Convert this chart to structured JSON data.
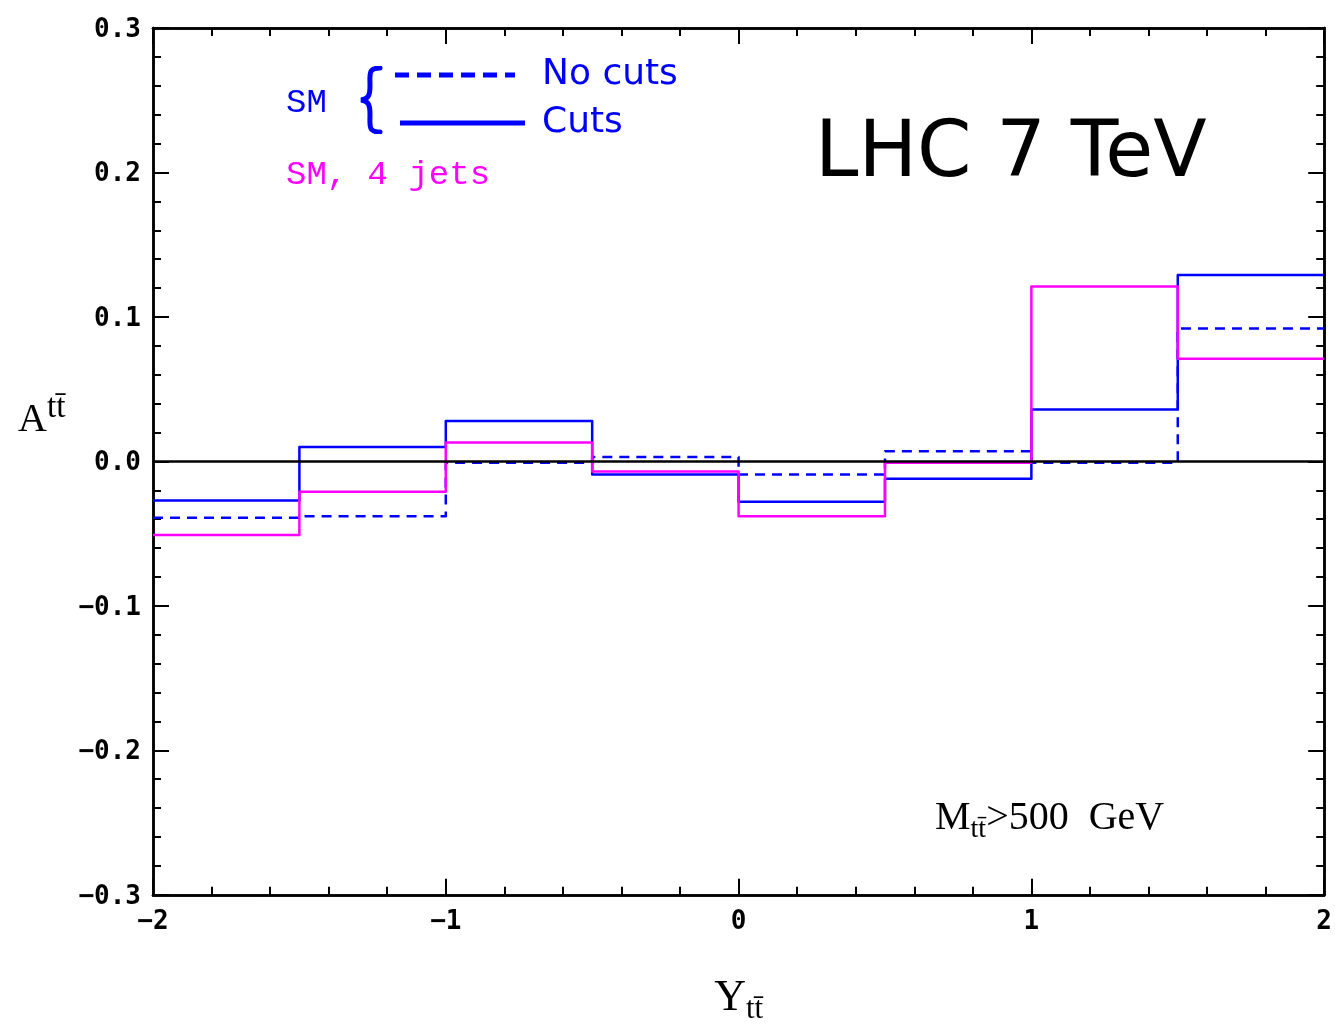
{
  "chart_data": {
    "type": "histogram",
    "xlabel": "Y$_{tt̄}$",
    "ylabel": "A$^{tt̄}$",
    "bins": [
      -2,
      -1.5,
      -1,
      -0.5,
      0,
      0.5,
      1,
      1.5,
      2
    ],
    "series": [
      {
        "name": "No cuts",
        "color": "#0000ff",
        "line_style": "dashed",
        "values": [
          -0.039,
          -0.038,
          -0.001,
          0.003,
          -0.009,
          0.007,
          -0.001,
          0.092
        ]
      },
      {
        "name": "Cuts",
        "color": "#0000ff",
        "line_style": "solid",
        "values": [
          -0.027,
          0.01,
          0.028,
          -0.009,
          -0.028,
          -0.012,
          0.036,
          0.129
        ]
      },
      {
        "name": "SM, 4 jets",
        "color": "#ff00ff",
        "line_style": "solid",
        "values": [
          -0.051,
          -0.021,
          0.013,
          -0.007,
          -0.038,
          -0.001,
          0.121,
          0.071
        ]
      }
    ],
    "xlim": [
      -2,
      2
    ],
    "xticks": [
      {
        "value": -2,
        "label": "−2"
      },
      {
        "value": -1.8,
        "label": null
      },
      {
        "value": -1.6,
        "label": null
      },
      {
        "value": -1.4,
        "label": null
      },
      {
        "value": -1.2,
        "label": null
      },
      {
        "value": -1,
        "label": "−1"
      },
      {
        "value": -0.8,
        "label": null
      },
      {
        "value": -0.6,
        "label": null
      },
      {
        "value": -0.4,
        "label": null
      },
      {
        "value": -0.2,
        "label": null
      },
      0,
      {
        "value": 0.2,
        "label": null
      },
      {
        "value": 0.4,
        "label": null
      },
      {
        "value": 0.6,
        "label": null
      },
      {
        "value": 0.8,
        "label": null
      },
      1,
      {
        "value": 1.2,
        "label": null
      },
      {
        "value": 1.4,
        "label": null
      },
      {
        "value": 1.6,
        "label": null
      },
      {
        "value": 1.8,
        "label": null
      },
      2
    ],
    "ylim": [
      -0.3,
      0.3
    ],
    "yticks": [
      {
        "value": -0.3,
        "label": "−0.3"
      },
      {
        "value": -0.28,
        "label": null
      },
      {
        "value": -0.26,
        "label": null
      },
      {
        "value": -0.24,
        "label": null
      },
      {
        "value": -0.22,
        "label": null
      },
      {
        "value": -0.2,
        "label": "−0.2"
      },
      {
        "value": -0.18,
        "label": null
      },
      {
        "value": -0.16,
        "label": null
      },
      {
        "value": -0.14,
        "label": null
      },
      {
        "value": -0.12,
        "label": null
      },
      {
        "value": -0.1,
        "label": "−0.1"
      },
      {
        "value": -0.08,
        "label": null
      },
      {
        "value": -0.06,
        "label": null
      },
      {
        "value": -0.04,
        "label": null
      },
      {
        "value": -0.02,
        "label": null
      },
      {
        "value": 0,
        "label": "0.0"
      },
      {
        "value": 0.02,
        "label": null
      },
      {
        "value": 0.04,
        "label": null
      },
      {
        "value": 0.06,
        "label": null
      },
      {
        "value": 0.08,
        "label": null
      },
      0.1,
      {
        "value": 0.12,
        "label": null
      },
      {
        "value": 0.14,
        "label": null
      },
      {
        "value": 0.16,
        "label": null
      },
      {
        "value": 0.18,
        "label": null
      },
      0.2,
      {
        "value": 0.22,
        "label": null
      },
      {
        "value": 0.24,
        "label": null
      },
      {
        "value": 0.26,
        "label": null
      },
      {
        "value": 0.28,
        "label": null
      },
      0.3
    ],
    "ref_lines": [
      {
        "axis": "y",
        "value": 0,
        "label": null,
        "color": "#000000",
        "line_style": "solid"
      }
    ],
    "annotations": [
      "SM",
      "LHC 7 TeV",
      "M$_{tt̄}$>500  GeV"
    ],
    "legend": "top left",
    "grid": false
  }
}
